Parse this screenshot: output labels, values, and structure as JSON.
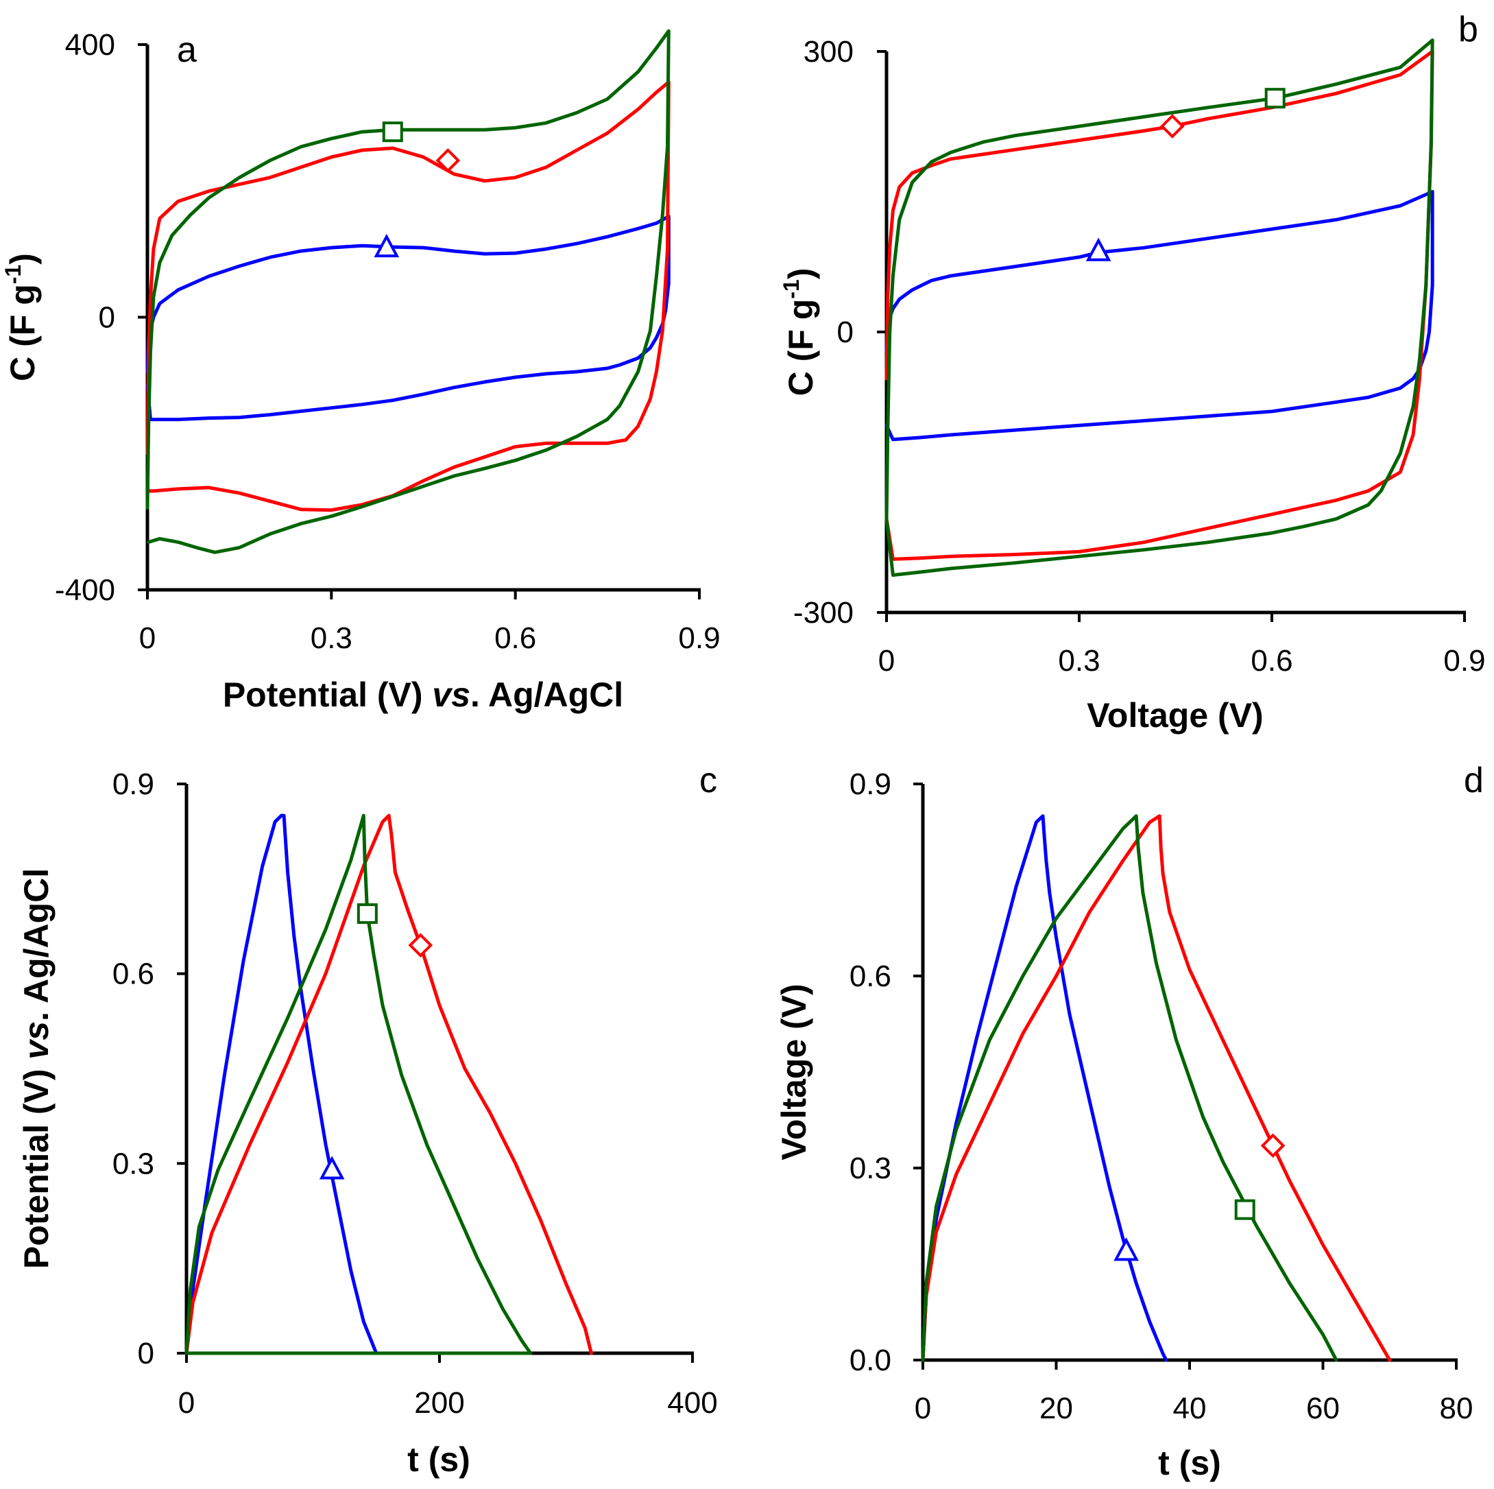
{
  "figure": {
    "panel_count": 4
  },
  "series_colors": {
    "blue": "#0000FF",
    "red": "#FF0000",
    "green": "#006400"
  },
  "chart_data": [
    {
      "panel": "a",
      "type": "line",
      "xlabel_parts": [
        {
          "text": "Potential (V) ",
          "italic": false
        },
        {
          "text": "vs",
          "italic": true
        },
        {
          "text": ". Ag/AgCl",
          "italic": false
        }
      ],
      "ylabel": "C (F g",
      "ylabel_sup": "-1",
      "ylabel_end": ")",
      "xlim": [
        0,
        0.9
      ],
      "ylim": [
        -400,
        400
      ],
      "xticks": [
        0,
        0.3,
        0.6,
        0.9
      ],
      "xtick_labels": [
        "0",
        "0.3",
        "0.6",
        "0.9"
      ],
      "yticks": [
        -400,
        0,
        400
      ],
      "ytick_labels": [
        "-400",
        "0",
        "400"
      ],
      "series": [
        {
          "color_key": "blue",
          "marker": "triangle",
          "marker_at": [
            0.39,
            102
          ],
          "x": [
            0,
            0.002,
            0.01,
            0.02,
            0.05,
            0.1,
            0.15,
            0.2,
            0.25,
            0.3,
            0.35,
            0.4,
            0.45,
            0.5,
            0.55,
            0.6,
            0.65,
            0.7,
            0.75,
            0.8,
            0.83,
            0.85,
            0.85,
            0.845,
            0.84,
            0.83,
            0.82,
            0.8,
            0.77,
            0.75,
            0.7,
            0.65,
            0.6,
            0.55,
            0.5,
            0.45,
            0.4,
            0.35,
            0.3,
            0.25,
            0.2,
            0.15,
            0.1,
            0.05,
            0.02,
            0.005,
            0
          ],
          "y": [
            -80,
            -30,
            0,
            20,
            40,
            60,
            75,
            88,
            97,
            102,
            105,
            103,
            102,
            97,
            93,
            94,
            100,
            108,
            118,
            130,
            138,
            148,
            50,
            10,
            -10,
            -30,
            -45,
            -60,
            -70,
            -75,
            -80,
            -83,
            -88,
            -95,
            -103,
            -113,
            -122,
            -128,
            -133,
            -138,
            -143,
            -147,
            -148,
            -150,
            -150,
            -150,
            -100
          ]
        },
        {
          "color_key": "red",
          "marker": "diamond",
          "marker_at": [
            0.49,
            230
          ],
          "x": [
            0,
            0.002,
            0.005,
            0.01,
            0.02,
            0.05,
            0.1,
            0.15,
            0.2,
            0.25,
            0.3,
            0.35,
            0.4,
            0.45,
            0.5,
            0.55,
            0.6,
            0.65,
            0.7,
            0.75,
            0.8,
            0.83,
            0.85,
            0.848,
            0.84,
            0.83,
            0.82,
            0.8,
            0.78,
            0.75,
            0.7,
            0.65,
            0.6,
            0.55,
            0.5,
            0.45,
            0.4,
            0.35,
            0.3,
            0.25,
            0.2,
            0.15,
            0.1,
            0.05,
            0.01,
            0.002
          ],
          "y": [
            -200,
            -50,
            30,
            100,
            145,
            170,
            185,
            195,
            205,
            220,
            235,
            245,
            248,
            235,
            210,
            200,
            205,
            220,
            245,
            270,
            305,
            330,
            345,
            100,
            -20,
            -80,
            -120,
            -160,
            -180,
            -185,
            -185,
            -185,
            -190,
            -205,
            -220,
            -240,
            -262,
            -275,
            -283,
            -282,
            -270,
            -258,
            -250,
            -252,
            -255,
            -255
          ]
        },
        {
          "color_key": "green",
          "marker": "square",
          "marker_at": [
            0.4,
            272
          ],
          "x": [
            0,
            0.002,
            0.005,
            0.01,
            0.02,
            0.04,
            0.07,
            0.1,
            0.15,
            0.2,
            0.25,
            0.3,
            0.35,
            0.4,
            0.45,
            0.5,
            0.55,
            0.6,
            0.65,
            0.7,
            0.75,
            0.8,
            0.83,
            0.85,
            0.848,
            0.84,
            0.83,
            0.82,
            0.8,
            0.77,
            0.75,
            0.7,
            0.65,
            0.6,
            0.55,
            0.5,
            0.45,
            0.4,
            0.35,
            0.3,
            0.25,
            0.2,
            0.15,
            0.11,
            0.08,
            0.05,
            0.02,
            0.002
          ],
          "y": [
            -280,
            -150,
            -50,
            30,
            80,
            120,
            150,
            175,
            205,
            230,
            250,
            262,
            272,
            275,
            275,
            275,
            275,
            278,
            285,
            300,
            320,
            360,
            395,
            420,
            250,
            150,
            60,
            -20,
            -80,
            -130,
            -150,
            -175,
            -195,
            -210,
            -222,
            -233,
            -248,
            -263,
            -278,
            -292,
            -303,
            -318,
            -338,
            -345,
            -338,
            -330,
            -325,
            -330
          ]
        }
      ]
    },
    {
      "panel": "b",
      "type": "line",
      "xlabel_parts": [
        {
          "text": "Voltage (V)",
          "italic": false
        }
      ],
      "ylabel": "C (F g",
      "ylabel_sup": "-1",
      "ylabel_end": ")",
      "xlim": [
        0,
        0.9
      ],
      "ylim": [
        -300,
        300
      ],
      "xticks": [
        0,
        0.3,
        0.6,
        0.9
      ],
      "xtick_labels": [
        "0",
        "0.3",
        "0.6",
        "0.9"
      ],
      "yticks": [
        -300,
        0,
        300
      ],
      "ytick_labels": [
        "-300",
        "0",
        "300"
      ],
      "series": [
        {
          "color_key": "blue",
          "marker": "triangle",
          "marker_at": [
            0.33,
            86
          ],
          "x": [
            0,
            0.002,
            0.01,
            0.02,
            0.04,
            0.07,
            0.1,
            0.2,
            0.3,
            0.33,
            0.4,
            0.5,
            0.6,
            0.7,
            0.8,
            0.85,
            0.85,
            0.845,
            0.84,
            0.83,
            0.82,
            0.8,
            0.75,
            0.7,
            0.6,
            0.5,
            0.4,
            0.3,
            0.2,
            0.1,
            0.05,
            0.01,
            0
          ],
          "y": [
            -20,
            10,
            25,
            35,
            45,
            55,
            60,
            70,
            80,
            85,
            90,
            100,
            110,
            120,
            135,
            150,
            50,
            0,
            -20,
            -40,
            -50,
            -60,
            -70,
            -75,
            -85,
            -90,
            -95,
            -100,
            -105,
            -110,
            -113,
            -115,
            -100
          ]
        },
        {
          "color_key": "red",
          "marker": "diamond",
          "marker_at": [
            0.445,
            220
          ],
          "x": [
            0,
            0.002,
            0.005,
            0.01,
            0.02,
            0.04,
            0.07,
            0.1,
            0.2,
            0.3,
            0.4,
            0.445,
            0.5,
            0.6,
            0.7,
            0.8,
            0.85,
            0.848,
            0.84,
            0.83,
            0.82,
            0.8,
            0.75,
            0.7,
            0.6,
            0.5,
            0.4,
            0.3,
            0.2,
            0.1,
            0.05,
            0.01,
            0
          ],
          "y": [
            -50,
            40,
            90,
            130,
            155,
            170,
            178,
            185,
            195,
            205,
            215,
            220,
            228,
            240,
            255,
            275,
            300,
            200,
            50,
            -50,
            -110,
            -150,
            -170,
            -180,
            -195,
            -210,
            -225,
            -235,
            -238,
            -240,
            -242,
            -243,
            -200
          ]
        },
        {
          "color_key": "green",
          "marker": "square",
          "marker_at": [
            0.605,
            250
          ],
          "x": [
            0,
            0.002,
            0.005,
            0.01,
            0.02,
            0.04,
            0.07,
            0.1,
            0.15,
            0.2,
            0.3,
            0.4,
            0.5,
            0.605,
            0.7,
            0.8,
            0.85,
            0.848,
            0.84,
            0.83,
            0.82,
            0.8,
            0.77,
            0.75,
            0.7,
            0.65,
            0.6,
            0.5,
            0.4,
            0.3,
            0.2,
            0.1,
            0.05,
            0.01,
            0
          ],
          "y": [
            -200,
            -100,
            0,
            60,
            120,
            160,
            182,
            192,
            203,
            210,
            220,
            230,
            240,
            250,
            265,
            283,
            312,
            200,
            50,
            -30,
            -80,
            -130,
            -170,
            -185,
            -200,
            -208,
            -215,
            -225,
            -233,
            -240,
            -247,
            -253,
            -257,
            -260,
            -200
          ]
        }
      ]
    },
    {
      "panel": "c",
      "type": "line",
      "xlabel_parts": [
        {
          "text": "t (s)",
          "italic": false
        }
      ],
      "ylabel_parts": [
        {
          "text": "Potential (V) ",
          "italic": false
        },
        {
          "text": "vs",
          "italic": true
        },
        {
          "text": ". Ag/AgCl",
          "italic": false
        }
      ],
      "xlim": [
        0,
        400
      ],
      "ylim": [
        0,
        0.9
      ],
      "xticks": [
        0,
        200,
        400
      ],
      "xtick_labels": [
        "0",
        "200",
        "400"
      ],
      "yticks": [
        0,
        0.3,
        0.6,
        0.9
      ],
      "ytick_labels": [
        "0",
        "0.3",
        "0.6",
        "0.9"
      ],
      "series": [
        {
          "color_key": "blue",
          "marker": "triangle",
          "marker_at": [
            115,
            0.29
          ],
          "x": [
            0,
            5,
            15,
            30,
            45,
            60,
            70,
            75,
            77,
            78,
            80,
            85,
            90,
            100,
            110,
            120,
            130,
            140,
            150,
            153
          ],
          "y": [
            0,
            0.1,
            0.24,
            0.44,
            0.62,
            0.77,
            0.84,
            0.85,
            0.85,
            0.82,
            0.76,
            0.66,
            0.58,
            0.45,
            0.33,
            0.23,
            0.13,
            0.05,
            0,
            0
          ]
        },
        {
          "color_key": "red",
          "marker": "diamond",
          "marker_at": [
            185,
            0.645
          ],
          "x": [
            0,
            5,
            20,
            50,
            80,
            110,
            140,
            155,
            160,
            162,
            165,
            175,
            185,
            200,
            220,
            240,
            260,
            280,
            300,
            315,
            320
          ],
          "y": [
            0,
            0.08,
            0.19,
            0.33,
            0.46,
            0.6,
            0.77,
            0.84,
            0.85,
            0.82,
            0.76,
            0.7,
            0.645,
            0.55,
            0.45,
            0.38,
            0.3,
            0.21,
            0.11,
            0.04,
            0
          ]
        },
        {
          "color_key": "green",
          "marker": "square",
          "marker_at": [
            143,
            0.695
          ],
          "x": [
            0,
            3,
            10,
            25,
            50,
            80,
            110,
            130,
            140,
            141,
            143,
            148,
            155,
            170,
            190,
            210,
            230,
            250,
            265,
            272
          ],
          "y": [
            0,
            0.1,
            0.2,
            0.29,
            0.4,
            0.53,
            0.67,
            0.78,
            0.85,
            0.78,
            0.695,
            0.63,
            0.55,
            0.44,
            0.33,
            0.24,
            0.15,
            0.07,
            0.02,
            0
          ]
        },
        {
          "color_key": "green",
          "marker": "none",
          "marker_at": null,
          "x": [
            0,
            272
          ],
          "y": [
            0,
            0
          ]
        }
      ]
    },
    {
      "panel": "d",
      "type": "line",
      "xlabel_parts": [
        {
          "text": "t (s)",
          "italic": false
        }
      ],
      "ylabel_parts": [
        {
          "text": "Voltage (V)",
          "italic": false
        }
      ],
      "xlim": [
        0,
        80
      ],
      "ylim": [
        0,
        0.9
      ],
      "xticks": [
        0,
        20,
        40,
        60,
        80
      ],
      "xtick_labels": [
        "0",
        "20",
        "40",
        "60",
        "80"
      ],
      "yticks": [
        0,
        0.3,
        0.6,
        0.9
      ],
      "ytick_labels": [
        "0.0",
        "0.3",
        "0.6",
        "0.9"
      ],
      "series": [
        {
          "color_key": "blue",
          "marker": "triangle",
          "marker_at": [
            30.5,
            0.17
          ],
          "x": [
            0,
            0.5,
            2,
            5,
            8,
            11,
            14,
            17,
            18,
            18.2,
            18.5,
            19,
            20,
            22,
            24,
            26,
            28,
            30,
            32,
            34,
            36,
            36.5
          ],
          "y": [
            0,
            0.1,
            0.22,
            0.37,
            0.5,
            0.62,
            0.74,
            0.84,
            0.85,
            0.82,
            0.78,
            0.73,
            0.66,
            0.54,
            0.45,
            0.36,
            0.27,
            0.19,
            0.12,
            0.06,
            0.01,
            0
          ]
        },
        {
          "color_key": "red",
          "marker": "diamond",
          "marker_at": [
            52.5,
            0.335
          ],
          "x": [
            0,
            0.5,
            2,
            5,
            10,
            15,
            20,
            25,
            30,
            34,
            35.5,
            35.7,
            36,
            37,
            40,
            45,
            50,
            55,
            60,
            65,
            70
          ],
          "y": [
            0,
            0.1,
            0.2,
            0.29,
            0.4,
            0.51,
            0.6,
            0.7,
            0.78,
            0.84,
            0.85,
            0.8,
            0.76,
            0.7,
            0.61,
            0.5,
            0.39,
            0.28,
            0.18,
            0.09,
            0
          ]
        },
        {
          "color_key": "green",
          "marker": "square",
          "marker_at": [
            48.3,
            0.235
          ],
          "x": [
            0,
            0.5,
            2,
            5,
            10,
            15,
            20,
            25,
            30,
            32,
            32.3,
            33,
            35,
            38,
            42,
            45,
            50,
            55,
            60,
            62
          ],
          "y": [
            0,
            0.12,
            0.24,
            0.36,
            0.5,
            0.6,
            0.69,
            0.76,
            0.83,
            0.85,
            0.8,
            0.73,
            0.62,
            0.5,
            0.38,
            0.31,
            0.21,
            0.12,
            0.04,
            0
          ]
        }
      ]
    }
  ]
}
